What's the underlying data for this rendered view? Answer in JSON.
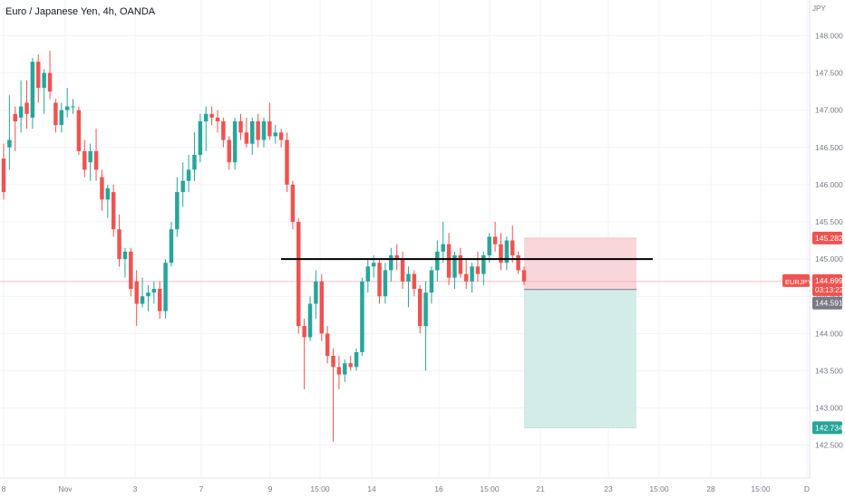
{
  "header": {
    "title": "Euro / Japanese Yen, 4h, OANDA",
    "currency": "JPY"
  },
  "chart_data": {
    "type": "candlestick",
    "symbol": "EURJPY",
    "interval": "4h",
    "source": "OANDA",
    "price_axis": {
      "ticks": [
        "148.000",
        "147.500",
        "147.000",
        "146.500",
        "146.000",
        "145.500",
        "145.000",
        "144.500",
        "144.000",
        "143.500",
        "143.000",
        "142.500"
      ],
      "ylim": [
        142.35,
        148.2
      ]
    },
    "time_axis": {
      "ticks": [
        "8",
        "Nov",
        "3",
        "7",
        "9",
        "15:00",
        "14",
        "16",
        "15:00",
        "21",
        "23",
        "15:00",
        "28",
        "15:00",
        "D"
      ]
    },
    "colors": {
      "up": "#26a69a",
      "down": "#ef5350",
      "stop_zone": "#f8cfd2",
      "target_zone": "#cdeae5",
      "level_line": "#000000",
      "price_line": "#f3a9ae"
    },
    "horizontal_level": 145.0,
    "position_tool": {
      "entry": 144.591,
      "stop": 145.282,
      "target": 142.734
    },
    "last_price": {
      "symbol": "EURJPY",
      "price": "144.699",
      "countdown": "03:13:22",
      "value": 144.699
    },
    "labels": {
      "stop": "145.282",
      "entry": "144.591",
      "target": "142.734"
    },
    "candles": [
      [
        146.35,
        146.55,
        145.8,
        145.9
      ],
      [
        146.5,
        147.2,
        146.2,
        146.6
      ],
      [
        146.95,
        147.05,
        146.45,
        146.85
      ],
      [
        146.9,
        147.4,
        146.7,
        147.05
      ],
      [
        147.1,
        147.4,
        146.75,
        146.95
      ],
      [
        146.9,
        147.7,
        146.75,
        147.65
      ],
      [
        147.65,
        147.75,
        147.1,
        147.3
      ],
      [
        147.3,
        147.55,
        146.95,
        147.5
      ],
      [
        147.5,
        147.8,
        147.15,
        147.25
      ],
      [
        147.1,
        147.15,
        146.7,
        146.8
      ],
      [
        146.8,
        147.1,
        146.7,
        147.0
      ],
      [
        147.0,
        147.3,
        146.9,
        147.05
      ],
      [
        147.05,
        147.15,
        146.95,
        147.05
      ],
      [
        147.0,
        147.05,
        146.4,
        146.45
      ],
      [
        146.45,
        146.6,
        146.1,
        146.2
      ],
      [
        146.3,
        146.55,
        146.05,
        146.45
      ],
      [
        146.45,
        146.75,
        146.05,
        146.2
      ],
      [
        146.1,
        146.2,
        145.65,
        145.8
      ],
      [
        145.8,
        146.0,
        145.55,
        145.95
      ],
      [
        145.9,
        146.0,
        145.3,
        145.4
      ],
      [
        145.4,
        145.6,
        144.9,
        145.0
      ],
      [
        145.0,
        145.15,
        144.75,
        145.1
      ],
      [
        145.1,
        145.15,
        144.5,
        144.6
      ],
      [
        144.7,
        144.85,
        144.1,
        144.4
      ],
      [
        144.4,
        144.75,
        144.35,
        144.5
      ],
      [
        144.5,
        144.65,
        144.3,
        144.55
      ],
      [
        144.55,
        144.7,
        144.4,
        144.6
      ],
      [
        144.6,
        144.7,
        144.2,
        144.3
      ],
      [
        144.3,
        145.0,
        144.2,
        144.95
      ],
      [
        144.95,
        145.5,
        144.9,
        145.4
      ],
      [
        145.4,
        146.1,
        145.3,
        145.9
      ],
      [
        145.9,
        146.3,
        145.7,
        146.05
      ],
      [
        146.05,
        146.4,
        145.9,
        146.2
      ],
      [
        146.2,
        146.7,
        146.05,
        146.4
      ],
      [
        146.4,
        146.95,
        146.3,
        146.85
      ],
      [
        146.85,
        147.05,
        146.45,
        146.95
      ],
      [
        146.95,
        147.05,
        146.8,
        146.9
      ],
      [
        146.9,
        147.0,
        146.7,
        146.85
      ],
      [
        146.85,
        146.9,
        146.5,
        146.6
      ],
      [
        146.6,
        146.65,
        146.2,
        146.3
      ],
      [
        146.3,
        146.9,
        146.2,
        146.85
      ],
      [
        146.85,
        146.95,
        146.6,
        146.7
      ],
      [
        146.7,
        146.9,
        146.5,
        146.55
      ],
      [
        146.55,
        146.9,
        146.4,
        146.85
      ],
      [
        146.85,
        146.95,
        146.5,
        146.6
      ],
      [
        146.6,
        146.9,
        146.5,
        146.85
      ],
      [
        146.85,
        147.1,
        146.6,
        146.65
      ],
      [
        146.65,
        146.8,
        146.55,
        146.7
      ],
      [
        146.7,
        146.75,
        146.5,
        146.6
      ],
      [
        146.6,
        146.7,
        145.9,
        146.0
      ],
      [
        146.0,
        146.05,
        145.4,
        145.5
      ],
      [
        145.5,
        145.55,
        144.0,
        144.1
      ],
      [
        144.1,
        144.2,
        143.25,
        143.95
      ],
      [
        143.95,
        144.5,
        143.9,
        144.4
      ],
      [
        144.4,
        144.85,
        144.2,
        144.7
      ],
      [
        144.7,
        144.8,
        143.9,
        144.0
      ],
      [
        144.0,
        144.1,
        143.6,
        143.7
      ],
      [
        143.7,
        143.8,
        142.55,
        143.55
      ],
      [
        143.55,
        143.7,
        143.25,
        143.45
      ],
      [
        143.45,
        143.65,
        143.35,
        143.6
      ],
      [
        143.6,
        143.7,
        143.5,
        143.55
      ],
      [
        143.55,
        143.8,
        143.5,
        143.75
      ],
      [
        143.75,
        144.75,
        143.7,
        144.7
      ],
      [
        144.7,
        145.0,
        144.55,
        144.9
      ],
      [
        144.9,
        145.05,
        144.75,
        144.95
      ],
      [
        144.95,
        145.0,
        144.4,
        144.5
      ],
      [
        144.5,
        144.95,
        144.4,
        144.85
      ],
      [
        144.85,
        145.15,
        144.7,
        145.05
      ],
      [
        145.05,
        145.2,
        144.85,
        145.0
      ],
      [
        145.0,
        145.1,
        144.6,
        144.7
      ],
      [
        144.7,
        144.9,
        144.35,
        144.8
      ],
      [
        144.8,
        144.85,
        144.5,
        144.6
      ],
      [
        144.6,
        144.65,
        144.0,
        144.1
      ],
      [
        144.1,
        144.7,
        143.5,
        144.55
      ],
      [
        144.55,
        144.9,
        144.4,
        144.85
      ],
      [
        144.85,
        145.25,
        144.7,
        145.1
      ],
      [
        145.1,
        145.5,
        144.95,
        145.2
      ],
      [
        145.2,
        145.35,
        144.65,
        144.75
      ],
      [
        144.75,
        145.1,
        144.6,
        145.05
      ],
      [
        145.05,
        145.15,
        144.75,
        144.8
      ],
      [
        144.8,
        145.0,
        144.6,
        144.7
      ],
      [
        144.7,
        144.95,
        144.55,
        144.9
      ],
      [
        144.9,
        145.1,
        144.7,
        144.8
      ],
      [
        144.8,
        145.1,
        144.65,
        145.05
      ],
      [
        145.05,
        145.35,
        144.95,
        145.3
      ],
      [
        145.3,
        145.5,
        145.1,
        145.2
      ],
      [
        145.2,
        145.35,
        144.85,
        144.95
      ],
      [
        144.95,
        145.3,
        144.85,
        145.25
      ],
      [
        145.25,
        145.45,
        144.95,
        145.05
      ],
      [
        145.05,
        145.1,
        144.8,
        144.85
      ],
      [
        144.85,
        144.9,
        144.65,
        144.7
      ]
    ]
  }
}
